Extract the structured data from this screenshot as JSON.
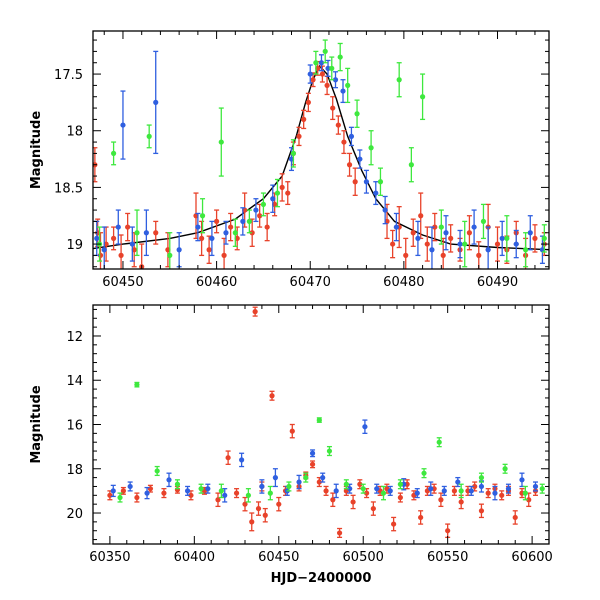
{
  "chart_data": [
    {
      "type": "scatter",
      "title": "",
      "xlabel": "",
      "ylabel": "Magnitude",
      "xlim": [
        60446.8,
        60495.5
      ],
      "ylim": [
        19.22,
        17.12
      ],
      "y_inverted": true,
      "grid": false,
      "legend": "none",
      "xticks": [
        60450,
        60460,
        60470,
        60480,
        60490
      ],
      "xtick_labels": [
        "60450",
        "60460",
        "60470",
        "60480",
        "60490"
      ],
      "yticks": [
        17.5,
        18,
        18.5,
        19
      ],
      "ytick_labels": [
        "17.5",
        "18",
        "18.5",
        "19"
      ],
      "model_curve": {
        "color": "#000000",
        "x": [
          60446.8,
          60450,
          60455,
          60458,
          60462,
          60465,
          60467,
          60468.5,
          60469.5,
          60470.3,
          60471,
          60471.8,
          60472.8,
          60474,
          60475.5,
          60477,
          60479,
          60482,
          60485,
          60490,
          60495.5
        ],
        "y": [
          19.04,
          19.0,
          18.95,
          18.9,
          18.78,
          18.6,
          18.4,
          18.05,
          17.75,
          17.55,
          17.43,
          17.5,
          17.72,
          18.05,
          18.35,
          18.6,
          18.8,
          18.92,
          19.0,
          19.03,
          19.05
        ]
      },
      "series": [
        {
          "color": "#e8422a",
          "x": [
            60447.0,
            60447.3,
            60447.6,
            60448.2,
            60449.0,
            60449.8,
            60450.5,
            60451.2,
            60452.0,
            60453.5,
            60454.8,
            60457.8,
            60458.4,
            60459.2,
            60460.0,
            60460.8,
            60461.5,
            60462.2,
            60463.0,
            60463.8,
            60464.6,
            60465.4,
            60466.2,
            60467.0,
            60467.6,
            60468.2,
            60468.8,
            60469.3,
            60469.8,
            60470.3,
            60470.8,
            60471.3,
            60471.8,
            60472.4,
            60473.0,
            60473.6,
            60474.2,
            60474.8,
            60478.2,
            60478.8,
            60479.5,
            60480.2,
            60481.0,
            60481.8,
            60482.5,
            60483.3,
            60484.2,
            60485.0,
            60486.0,
            60487.0,
            60488.0,
            60489.0,
            60490.0,
            60491.0,
            60492.0,
            60493.0,
            60494.0,
            60495.0
          ],
          "y": [
            18.3,
            18.9,
            19.1,
            19.0,
            18.95,
            19.1,
            18.85,
            19.05,
            19.2,
            18.9,
            19.05,
            18.75,
            18.95,
            19.05,
            18.8,
            19.1,
            18.85,
            18.95,
            18.7,
            18.9,
            18.75,
            18.85,
            18.65,
            18.5,
            18.55,
            18.2,
            18.05,
            17.9,
            17.75,
            17.55,
            17.45,
            17.5,
            17.6,
            17.8,
            17.95,
            18.1,
            18.3,
            18.45,
            18.8,
            19.0,
            18.85,
            19.1,
            18.9,
            18.75,
            19.0,
            18.85,
            19.1,
            18.95,
            19.05,
            18.9,
            19.1,
            18.85,
            19.0,
            19.05,
            18.9,
            19.1,
            18.95,
            19.0
          ],
          "err": [
            0.15,
            0.12,
            0.2,
            0.15,
            0.1,
            0.18,
            0.12,
            0.15,
            0.2,
            0.1,
            0.15,
            0.2,
            0.15,
            0.12,
            0.1,
            0.15,
            0.12,
            0.1,
            0.15,
            0.12,
            0.1,
            0.12,
            0.1,
            0.12,
            0.1,
            0.1,
            0.08,
            0.08,
            0.08,
            0.06,
            0.06,
            0.07,
            0.08,
            0.1,
            0.08,
            0.1,
            0.1,
            0.12,
            0.15,
            0.12,
            0.18,
            0.15,
            0.12,
            0.2,
            0.15,
            0.12,
            0.15,
            0.12,
            0.1,
            0.15,
            0.12,
            0.2,
            0.15,
            0.12,
            0.1,
            0.15,
            0.12,
            0.1
          ]
        },
        {
          "color": "#2f5fe0",
          "x": [
            60447.2,
            60448.0,
            60449.5,
            60450.0,
            60451.0,
            60452.5,
            60453.5,
            60456.0,
            60458.0,
            60459.5,
            60461.0,
            60462.8,
            60464.2,
            60466.0,
            60468.0,
            60470.0,
            60471.2,
            60471.9,
            60472.7,
            60473.5,
            60474.4,
            60475.3,
            60476.0,
            60477.0,
            60478.0,
            60479.2,
            60481.5,
            60483.0,
            60484.5,
            60486.0,
            60487.5,
            60489.0,
            60490.5,
            60492.0,
            60493.5,
            60494.8
          ],
          "y": [
            18.95,
            19.05,
            18.85,
            17.95,
            19.0,
            18.9,
            17.75,
            19.05,
            18.85,
            18.95,
            18.9,
            18.8,
            18.7,
            18.6,
            18.25,
            17.5,
            17.4,
            17.45,
            17.55,
            17.65,
            18.05,
            18.25,
            18.45,
            18.55,
            18.7,
            18.85,
            18.95,
            19.05,
            18.9,
            19.0,
            18.85,
            19.05,
            18.95,
            19.0,
            18.9,
            19.05
          ],
          "err": [
            0.15,
            0.2,
            0.15,
            0.3,
            0.15,
            0.2,
            0.45,
            0.15,
            0.12,
            0.15,
            0.1,
            0.12,
            0.1,
            0.12,
            0.1,
            0.08,
            0.07,
            0.07,
            0.07,
            0.1,
            0.08,
            0.08,
            0.1,
            0.1,
            0.12,
            0.12,
            0.15,
            0.2,
            0.15,
            0.12,
            0.15,
            0.2,
            0.15,
            0.12,
            0.15,
            0.12
          ]
        },
        {
          "color": "#3ee83e",
          "x": [
            60447.5,
            60449.0,
            60451.5,
            60452.8,
            60455.0,
            60458.5,
            60460.5,
            60462.0,
            60463.5,
            60465.0,
            60466.5,
            60468.2,
            60470.6,
            60471.6,
            60472.3,
            60473.2,
            60474.0,
            60475.0,
            60476.5,
            60477.5,
            60479.5,
            60480.8,
            60482.0,
            60484.0,
            60486.5,
            60488.5,
            60491.0,
            60493.0,
            60495.0
          ],
          "y": [
            19.0,
            18.2,
            18.9,
            18.05,
            19.1,
            18.75,
            18.1,
            18.9,
            18.8,
            18.65,
            18.55,
            18.2,
            17.4,
            17.3,
            17.45,
            17.35,
            17.6,
            17.85,
            18.15,
            18.45,
            17.55,
            18.3,
            17.7,
            18.85,
            19.0,
            18.8,
            18.95,
            19.05,
            18.95
          ],
          "err": [
            0.15,
            0.1,
            0.2,
            0.1,
            0.2,
            0.15,
            0.3,
            0.12,
            0.1,
            0.1,
            0.12,
            0.12,
            0.1,
            0.1,
            0.1,
            0.12,
            0.15,
            0.12,
            0.15,
            0.12,
            0.15,
            0.15,
            0.2,
            0.15,
            0.2,
            0.15,
            0.2,
            0.15,
            0.12
          ]
        }
      ]
    },
    {
      "type": "scatter",
      "title": "",
      "xlabel": "HJD−2400000",
      "ylabel": "Magnitude",
      "xlim": [
        60340,
        60610
      ],
      "ylim": [
        21.4,
        10.6
      ],
      "y_inverted": true,
      "grid": false,
      "legend": "none",
      "xticks": [
        60350,
        60400,
        60450,
        60500,
        60550,
        60600
      ],
      "xtick_labels": [
        "60350",
        "60400",
        "60450",
        "60500",
        "60550",
        "60600"
      ],
      "yticks": [
        12,
        14,
        16,
        18,
        20
      ],
      "ytick_labels": [
        "12",
        "14",
        "16",
        "18",
        "20"
      ],
      "series": [
        {
          "color": "#e8422a",
          "x": [
            60350,
            60358,
            60366,
            60374,
            60382,
            60390,
            60398,
            60406,
            60414,
            60420,
            60425,
            60430,
            60434,
            60436,
            60438,
            60440,
            60442,
            60446,
            60450,
            60454,
            60458,
            60462,
            60466,
            60470,
            60474,
            60478,
            60482,
            60486,
            60490,
            60494,
            60498,
            60502,
            60506,
            60510,
            60514,
            60518,
            60522,
            60526,
            60530,
            60534,
            60538,
            60542,
            60546,
            60550,
            60554,
            60558,
            60562,
            60566,
            60570,
            60574,
            60578,
            60582,
            60586,
            60590,
            60594,
            60598,
            60602
          ],
          "y": [
            19.2,
            19.0,
            19.3,
            18.9,
            19.1,
            18.95,
            19.2,
            19.0,
            19.4,
            17.5,
            19.1,
            19.6,
            20.4,
            10.9,
            19.8,
            18.8,
            20.1,
            14.7,
            19.6,
            19.0,
            16.3,
            18.8,
            18.3,
            17.8,
            18.6,
            19.0,
            19.4,
            20.9,
            19.0,
            19.5,
            18.7,
            19.1,
            19.8,
            19.0,
            18.9,
            20.5,
            19.3,
            18.7,
            19.2,
            20.2,
            19.0,
            18.9,
            19.4,
            20.8,
            19.0,
            19.5,
            19.0,
            18.8,
            19.9,
            19.1,
            18.9,
            19.2,
            19.0,
            20.2,
            19.1,
            19.4,
            19.0
          ],
          "err": [
            0.2,
            0.15,
            0.2,
            0.15,
            0.2,
            0.15,
            0.2,
            0.15,
            0.3,
            0.3,
            0.2,
            0.3,
            0.4,
            0.2,
            0.3,
            0.2,
            0.3,
            0.2,
            0.3,
            0.2,
            0.3,
            0.2,
            0.15,
            0.15,
            0.2,
            0.2,
            0.3,
            0.2,
            0.2,
            0.3,
            0.2,
            0.2,
            0.3,
            0.2,
            0.2,
            0.3,
            0.2,
            0.2,
            0.2,
            0.3,
            0.2,
            0.2,
            0.3,
            0.3,
            0.2,
            0.3,
            0.2,
            0.2,
            0.3,
            0.2,
            0.2,
            0.2,
            0.2,
            0.3,
            0.2,
            0.3,
            0.2
          ]
        },
        {
          "color": "#2f5fe0",
          "x": [
            60352,
            60362,
            60372,
            60385,
            60396,
            60408,
            60418,
            60428,
            60440,
            60448,
            60455,
            60462,
            60470,
            60476,
            60484,
            60492,
            60501,
            60508,
            60516,
            60524,
            60532,
            60540,
            60548,
            60556,
            60564,
            60570,
            60578,
            60586,
            60594,
            60602
          ],
          "y": [
            19.0,
            18.8,
            19.1,
            18.5,
            19.0,
            18.9,
            19.2,
            17.6,
            18.8,
            18.4,
            19.0,
            18.6,
            17.3,
            18.4,
            19.0,
            18.9,
            16.1,
            18.9,
            19.0,
            18.7,
            19.1,
            18.9,
            19.0,
            18.6,
            19.0,
            18.8,
            19.1,
            18.9,
            18.5,
            18.8
          ],
          "err": [
            0.25,
            0.2,
            0.25,
            0.3,
            0.2,
            0.2,
            0.3,
            0.3,
            0.3,
            0.4,
            0.2,
            0.3,
            0.15,
            0.2,
            0.3,
            0.2,
            0.3,
            0.2,
            0.2,
            0.25,
            0.2,
            0.3,
            0.2,
            0.2,
            0.2,
            0.25,
            0.3,
            0.2,
            0.3,
            0.2
          ]
        },
        {
          "color": "#3ee83e",
          "x": [
            60356,
            60366,
            60378,
            60390,
            60404,
            60416,
            60432,
            60445,
            60456,
            60466,
            60474,
            60480,
            60490,
            60500,
            60512,
            60522,
            60536,
            60545,
            60558,
            60570,
            60584,
            60596,
            60606
          ],
          "y": [
            19.3,
            14.2,
            18.1,
            18.7,
            18.9,
            19.0,
            19.2,
            19.1,
            18.8,
            18.4,
            15.8,
            17.2,
            18.7,
            18.9,
            19.1,
            18.7,
            18.2,
            16.8,
            19.0,
            18.4,
            18.0,
            19.1,
            18.9
          ],
          "err": [
            0.2,
            0.1,
            0.2,
            0.2,
            0.2,
            0.3,
            0.3,
            0.3,
            0.2,
            0.2,
            0.1,
            0.2,
            0.2,
            0.2,
            0.3,
            0.2,
            0.2,
            0.2,
            0.3,
            0.2,
            0.2,
            0.3,
            0.2
          ]
        }
      ]
    }
  ]
}
